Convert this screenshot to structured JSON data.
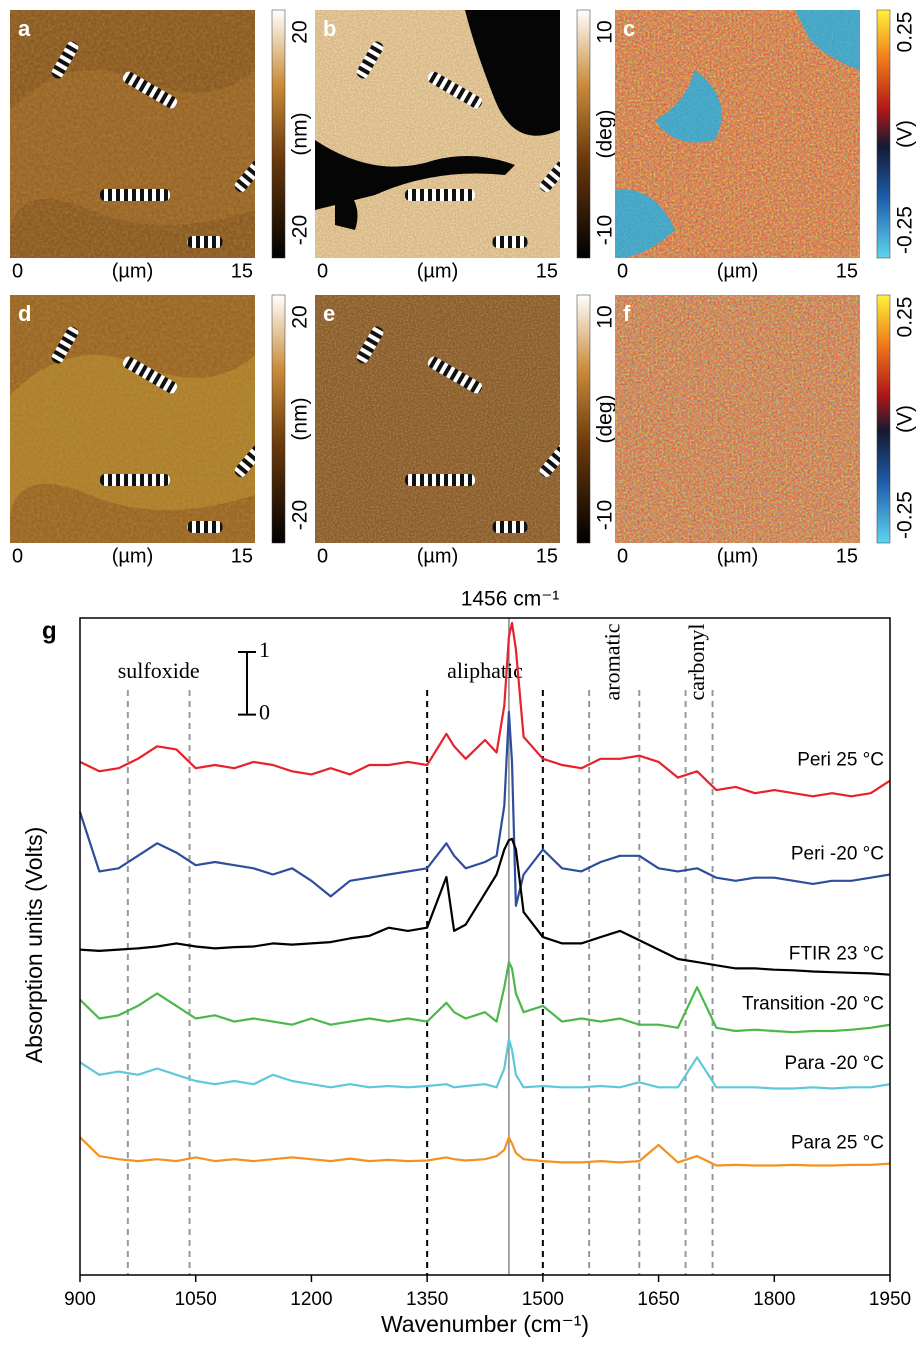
{
  "images": {
    "panels": [
      {
        "letter": "a",
        "colorbar": {
          "max": 20,
          "min": -20,
          "unit": "(nm)"
        },
        "axis": {
          "start": 0,
          "unit": "(µm)",
          "end": 15
        }
      },
      {
        "letter": "b",
        "colorbar": {
          "max": 10,
          "min": -10,
          "unit": "(deg)"
        },
        "axis": {
          "start": 0,
          "unit": "(µm)",
          "end": 15
        }
      },
      {
        "letter": "c",
        "colorbar": {
          "max": 0.25,
          "min": -0.25,
          "unit": "(V)"
        },
        "axis": {
          "start": 0,
          "unit": "(µm)",
          "end": 15
        }
      },
      {
        "letter": "d",
        "colorbar": {
          "max": 20,
          "min": -20,
          "unit": "(nm)"
        },
        "axis": {
          "start": 0,
          "unit": "(µm)",
          "end": 15
        }
      },
      {
        "letter": "e",
        "colorbar": {
          "max": 10,
          "min": -10,
          "unit": "(deg)"
        },
        "axis": {
          "start": 0,
          "unit": "(µm)",
          "end": 15
        }
      },
      {
        "letter": "f",
        "colorbar": {
          "max": 0.25,
          "min": -0.25,
          "unit": "(V)"
        },
        "axis": {
          "start": 0,
          "unit": "(µm)",
          "end": 15
        }
      }
    ]
  },
  "chart_data": {
    "type": "line",
    "panel_label": "g",
    "xlabel": "Wavenumber (cm⁻¹)",
    "ylabel": "Absorption units (Volts)",
    "xlim": [
      900,
      1950
    ],
    "xticks": [
      900,
      1050,
      1200,
      1350,
      1500,
      1650,
      1800,
      1950
    ],
    "ylim": [
      0,
      10.5
    ],
    "marker": {
      "value": 1456,
      "label": "1456 cm⁻¹",
      "color": "#888888"
    },
    "scale_bar": {
      "top": 1,
      "bottom": 0
    },
    "regions": [
      {
        "label": "sulfoxide",
        "range": [
          962,
          1042
        ],
        "color": "#999999"
      },
      {
        "label": "aliphatic",
        "range": [
          1350,
          1500
        ],
        "color": "#000000"
      },
      {
        "label": "aromatic",
        "range": [
          1560,
          1625
        ],
        "color": "#999999"
      },
      {
        "label": "carbonyl",
        "range": [
          1685,
          1720
        ],
        "color": "#999999"
      }
    ],
    "x": [
      900,
      925,
      950,
      975,
      1000,
      1025,
      1050,
      1075,
      1100,
      1125,
      1150,
      1175,
      1200,
      1225,
      1250,
      1275,
      1300,
      1325,
      1350,
      1375,
      1385,
      1400,
      1425,
      1440,
      1450,
      1456,
      1460,
      1465,
      1475,
      1500,
      1525,
      1550,
      1575,
      1600,
      1625,
      1650,
      1675,
      1700,
      1725,
      1750,
      1775,
      1800,
      1825,
      1850,
      1875,
      1900,
      1925,
      1950
    ],
    "series": [
      {
        "name": "Peri 25 °C",
        "color": "#e8212b",
        "values": [
          8.2,
          8.05,
          8.1,
          8.25,
          8.45,
          8.4,
          8.1,
          8.15,
          8.1,
          8.2,
          8.15,
          8.05,
          8.0,
          8.1,
          8.0,
          8.15,
          8.15,
          8.2,
          8.15,
          8.65,
          8.45,
          8.25,
          8.55,
          8.35,
          9.1,
          10.2,
          10.42,
          10.0,
          8.6,
          8.25,
          8.15,
          8.1,
          8.25,
          8.25,
          8.3,
          8.2,
          7.95,
          8.05,
          7.75,
          7.8,
          7.7,
          7.75,
          7.7,
          7.65,
          7.7,
          7.65,
          7.7,
          7.9
        ]
      },
      {
        "name": "Peri -20 °C",
        "color": "#2e4d9c",
        "values": [
          7.4,
          6.45,
          6.5,
          6.7,
          6.9,
          6.75,
          6.55,
          6.6,
          6.55,
          6.5,
          6.4,
          6.5,
          6.3,
          6.05,
          6.3,
          6.35,
          6.4,
          6.45,
          6.5,
          6.9,
          6.7,
          6.5,
          6.6,
          6.7,
          7.5,
          9.0,
          8.2,
          5.9,
          6.4,
          6.8,
          6.5,
          6.45,
          6.6,
          6.7,
          6.7,
          6.5,
          6.45,
          6.5,
          6.35,
          6.3,
          6.35,
          6.35,
          6.3,
          6.25,
          6.3,
          6.3,
          6.35,
          6.4
        ]
      },
      {
        "name": "FTIR 23 °C",
        "color": "#000000",
        "values": [
          5.2,
          5.18,
          5.2,
          5.22,
          5.25,
          5.3,
          5.25,
          5.22,
          5.24,
          5.25,
          5.3,
          5.28,
          5.3,
          5.32,
          5.38,
          5.42,
          5.55,
          5.5,
          5.55,
          6.36,
          5.5,
          5.6,
          6.1,
          6.4,
          6.8,
          6.95,
          6.97,
          6.8,
          5.8,
          5.4,
          5.3,
          5.3,
          5.4,
          5.5,
          5.35,
          5.2,
          5.05,
          5.0,
          4.95,
          4.9,
          4.9,
          4.88,
          4.87,
          4.85,
          4.84,
          4.83,
          4.82,
          4.8
        ]
      },
      {
        "name": "Transition -20 °C",
        "color": "#4cb84a",
        "values": [
          4.4,
          4.1,
          4.15,
          4.3,
          4.5,
          4.3,
          4.1,
          4.15,
          4.05,
          4.1,
          4.05,
          4.0,
          4.1,
          4.0,
          4.05,
          4.1,
          4.05,
          4.1,
          4.05,
          4.35,
          4.2,
          4.1,
          4.2,
          4.05,
          4.6,
          5.0,
          4.9,
          4.5,
          4.2,
          4.3,
          4.05,
          4.1,
          4.05,
          4.1,
          4.0,
          4.0,
          3.95,
          4.6,
          3.95,
          3.9,
          3.92,
          3.9,
          3.88,
          3.9,
          3.9,
          3.92,
          3.95,
          4.0
        ]
      },
      {
        "name": "Para -20 °C",
        "color": "#5ec8d8",
        "values": [
          3.4,
          3.2,
          3.25,
          3.2,
          3.3,
          3.2,
          3.1,
          3.05,
          3.1,
          3.05,
          3.2,
          3.1,
          3.05,
          3.0,
          3.05,
          3.0,
          3.02,
          3.0,
          3.02,
          3.05,
          3.0,
          3.02,
          3.05,
          3.0,
          3.3,
          3.77,
          3.6,
          3.2,
          3.0,
          3.02,
          3.0,
          3.0,
          3.02,
          3.0,
          3.08,
          3.0,
          3.0,
          3.48,
          3.0,
          3.0,
          3.0,
          2.98,
          2.98,
          3.0,
          2.98,
          3.0,
          3.0,
          3.05
        ]
      },
      {
        "name": "Para 25 °C",
        "color": "#f39220",
        "values": [
          2.2,
          1.9,
          1.85,
          1.82,
          1.85,
          1.82,
          1.88,
          1.82,
          1.85,
          1.82,
          1.85,
          1.88,
          1.85,
          1.82,
          1.86,
          1.82,
          1.84,
          1.82,
          1.83,
          1.88,
          1.85,
          1.83,
          1.85,
          1.9,
          2.0,
          2.2,
          2.1,
          1.95,
          1.85,
          1.82,
          1.8,
          1.8,
          1.82,
          1.8,
          1.82,
          2.08,
          1.8,
          1.9,
          1.75,
          1.76,
          1.75,
          1.75,
          1.76,
          1.75,
          1.75,
          1.76,
          1.76,
          1.78
        ]
      }
    ]
  }
}
